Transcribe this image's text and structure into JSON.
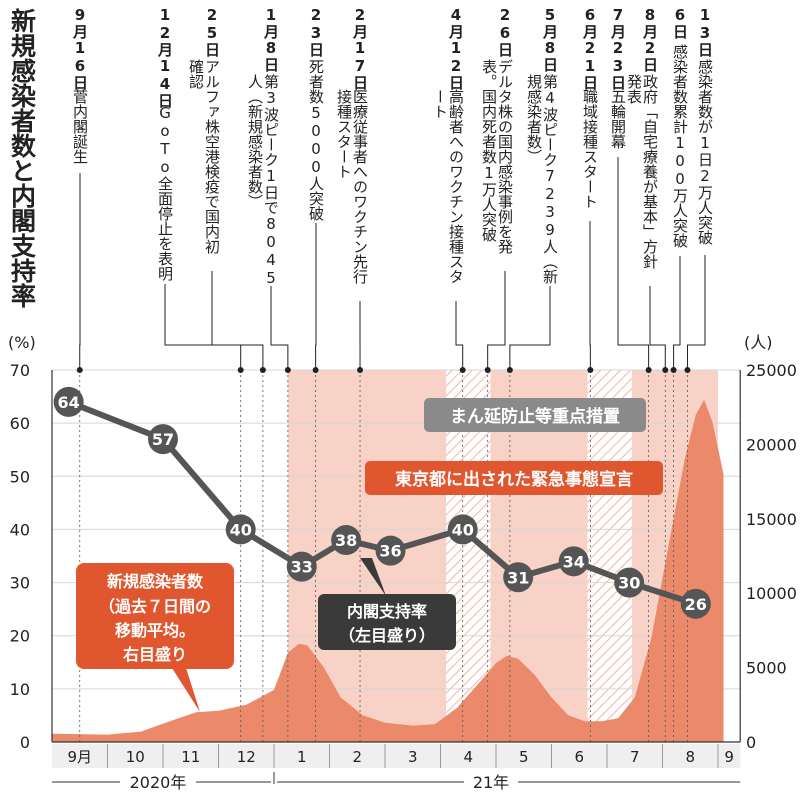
{
  "title": "新規感染者数と内閣支持率",
  "left_unit": "(%)",
  "right_unit": "(人)",
  "colors": {
    "emergency": "#f8d2c6",
    "infection": "#ea8a6a",
    "approval": "#555555",
    "emergency_label": "#e0562e",
    "measures_label": "#8a8a8a"
  },
  "events": [
    {
      "date": "9月16日",
      "text": "菅内閣誕生"
    },
    {
      "date": "12月14日",
      "text": "GoTo全面停止を表明"
    },
    {
      "date": "25日",
      "text": "アルファ株空港検疫で国内初確認"
    },
    {
      "date": "1月8日",
      "text": "第3波ピーク1日で8045人（新規感染者数）"
    },
    {
      "date": "23日",
      "text": "死者数5000人突破"
    },
    {
      "date": "2月17日",
      "text": "医療従事者へのワクチン先行接種スタート"
    },
    {
      "date": "4月12日",
      "text": "高齢者へのワクチン接種スタート"
    },
    {
      "date": "26日",
      "text": "デルタ株の国内感染事例を発表。国内死者数1万人突破"
    },
    {
      "date": "5月8日",
      "text": "第4波ピーク7239人（新規感染者数）"
    },
    {
      "date": "6月21日",
      "text": "職域接種スタート"
    },
    {
      "date": "7月23日",
      "text": "五輪開幕"
    },
    {
      "date": "8月2日",
      "text": "政府「自宅療養が基本」方針発表"
    },
    {
      "date": "6日",
      "text": "感染者数累計100万人突破"
    },
    {
      "date": "13日",
      "text": "感染者数が1日2万人突破"
    }
  ],
  "labels": {
    "measures": "まん延防止等重点措置",
    "emergency": "東京都に出された緊急事態宣言",
    "infection_box": [
      "新規感染者数",
      "（過去７日間の",
      "移動平均。",
      "右目盛り"
    ],
    "approval_box": [
      "内閣支持率",
      "（左目盛り）"
    ]
  },
  "chart_data": {
    "type": "line",
    "x_months": [
      "9月",
      "10",
      "11",
      "12",
      "1",
      "2",
      "3",
      "4",
      "5",
      "6",
      "7",
      "8",
      "9"
    ],
    "year_labels": [
      "2020年",
      "21年"
    ],
    "left_axis": {
      "label": "(%)",
      "ylim": [
        0,
        70
      ],
      "ticks": [
        0,
        10,
        20,
        30,
        40,
        50,
        60,
        70
      ]
    },
    "right_axis": {
      "label": "(人)",
      "ylim": [
        0,
        25000
      ],
      "ticks": [
        0,
        5000,
        10000,
        15000,
        20000,
        25000
      ]
    },
    "series": [
      {
        "name": "内閣支持率",
        "axis": "left",
        "points": [
          [
            0.3,
            64
          ],
          [
            2.0,
            57
          ],
          [
            3.4,
            40
          ],
          [
            4.5,
            33
          ],
          [
            5.3,
            38
          ],
          [
            6.1,
            36
          ],
          [
            7.4,
            40
          ],
          [
            8.4,
            31
          ],
          [
            9.4,
            34
          ],
          [
            10.4,
            30
          ],
          [
            11.6,
            26
          ]
        ]
      },
      {
        "name": "新規感染者数",
        "axis": "right",
        "type": "area",
        "points": [
          [
            0,
            550
          ],
          [
            1.0,
            500
          ],
          [
            1.6,
            700
          ],
          [
            2.2,
            1500
          ],
          [
            2.6,
            2000
          ],
          [
            3.0,
            2100
          ],
          [
            3.5,
            2500
          ],
          [
            4.0,
            3500
          ],
          [
            4.25,
            6000
          ],
          [
            4.45,
            6600
          ],
          [
            4.6,
            6500
          ],
          [
            4.9,
            5000
          ],
          [
            5.2,
            3000
          ],
          [
            5.6,
            1800
          ],
          [
            6.0,
            1300
          ],
          [
            6.5,
            1100
          ],
          [
            6.9,
            1200
          ],
          [
            7.3,
            2300
          ],
          [
            7.7,
            4000
          ],
          [
            8.0,
            5300
          ],
          [
            8.2,
            5800
          ],
          [
            8.4,
            5600
          ],
          [
            8.7,
            4500
          ],
          [
            9.0,
            3000
          ],
          [
            9.3,
            1800
          ],
          [
            9.6,
            1400
          ],
          [
            9.9,
            1400
          ],
          [
            10.2,
            1600
          ],
          [
            10.5,
            3000
          ],
          [
            10.8,
            7000
          ],
          [
            11.1,
            13000
          ],
          [
            11.4,
            19000
          ],
          [
            11.6,
            22000
          ],
          [
            11.75,
            23000
          ],
          [
            11.9,
            21500
          ],
          [
            12.1,
            18000
          ]
        ]
      }
    ],
    "emergency_periods": [
      [
        4.25,
        7.7
      ],
      [
        7.9,
        9.65
      ],
      [
        10.45,
        12.0
      ]
    ],
    "measures_periods": [
      [
        7.1,
        7.9
      ],
      [
        9.65,
        10.45
      ]
    ]
  }
}
